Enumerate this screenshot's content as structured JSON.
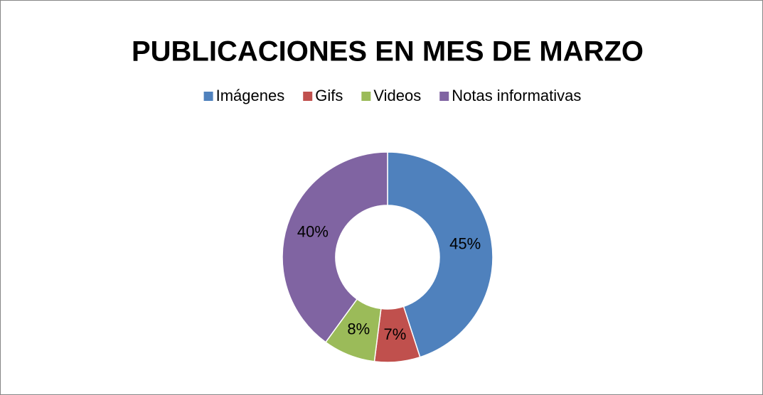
{
  "chart_data": {
    "type": "donut",
    "title": "PUBLICACIONES EN MES DE MARZO",
    "categories": [
      "Imágenes",
      "Gifs",
      "Videos",
      "Notas informativas"
    ],
    "values": [
      45,
      7,
      8,
      40
    ],
    "value_labels": [
      "45%",
      "7%",
      "8%",
      "40%"
    ],
    "colors": [
      "#4f81bd",
      "#c0504d",
      "#9bbb59",
      "#8064a2"
    ],
    "legend": "top"
  }
}
